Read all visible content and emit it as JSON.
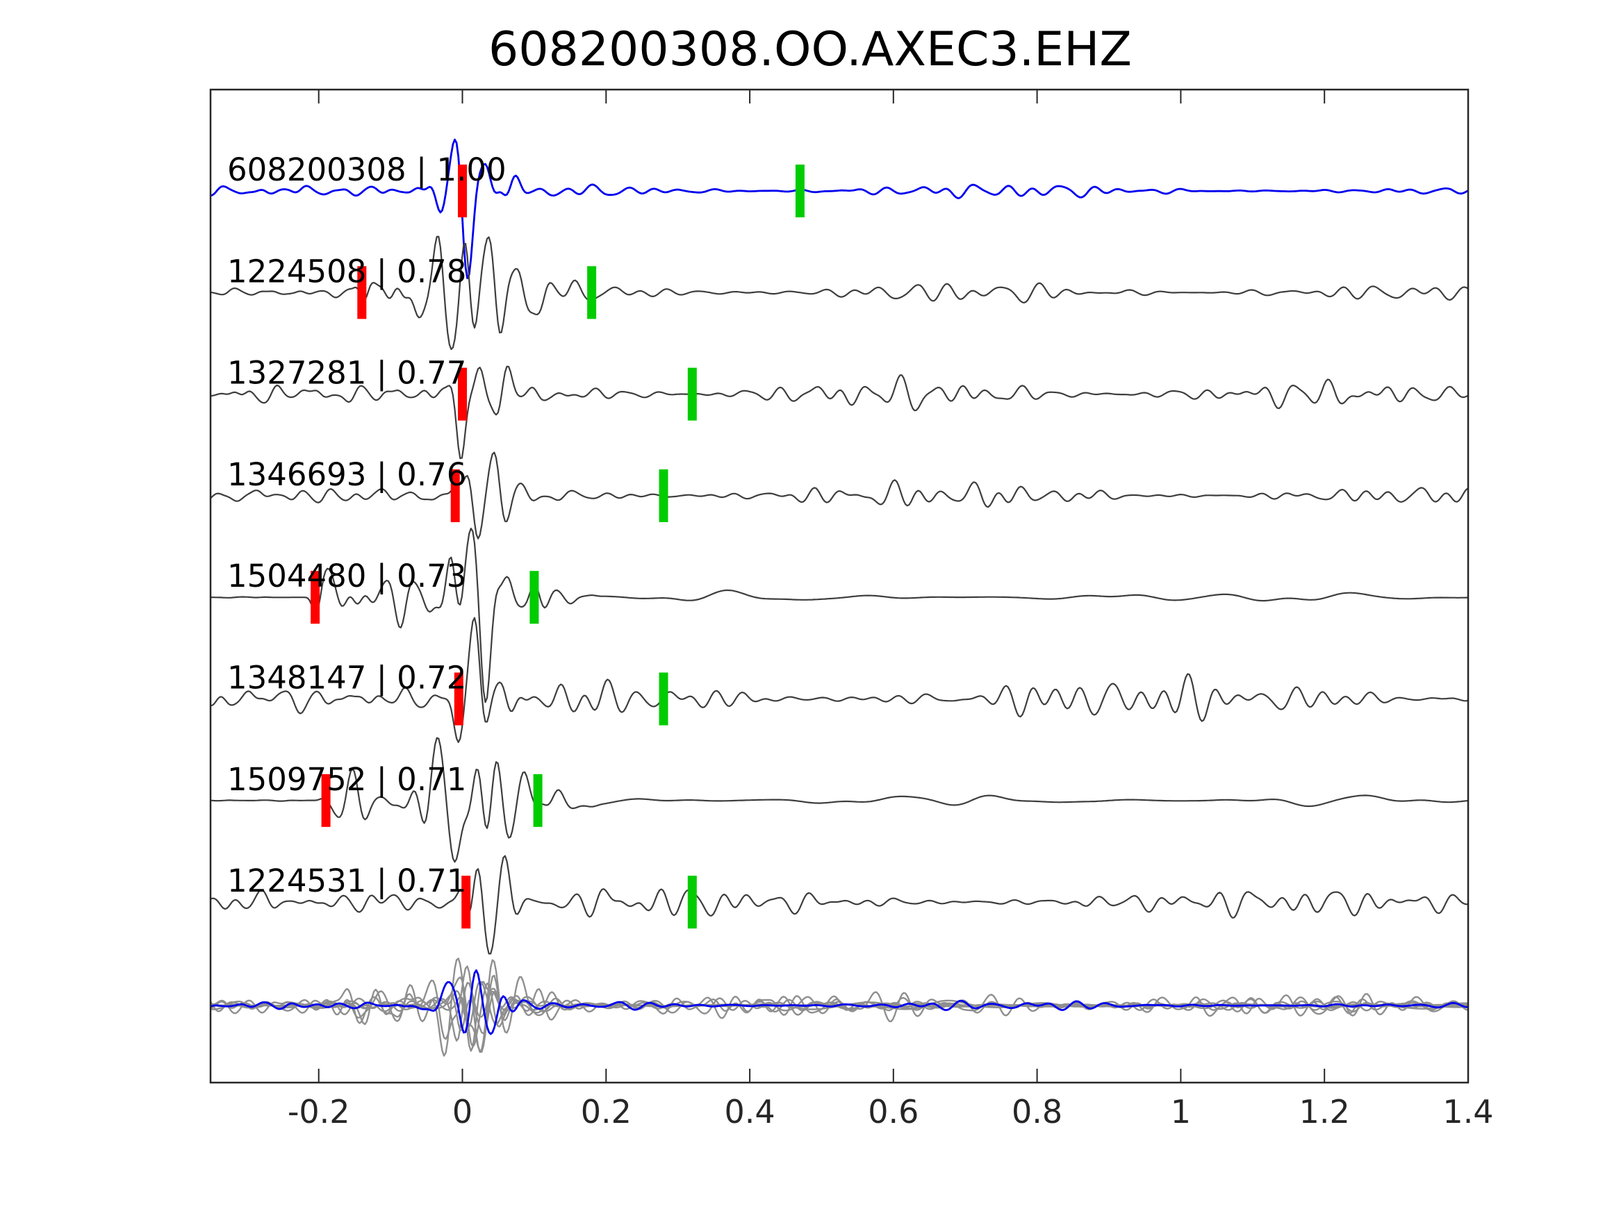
{
  "title": "608200308.OO.AXEC3.EHZ",
  "colors": {
    "template_trace": "#0000ee",
    "match_trace": "#3d3d3d",
    "overlay_gray": "#8f8f8f",
    "pick_red": "#ff0000",
    "pick_green": "#00cc00",
    "axis": "#262626",
    "text": "#000000"
  },
  "chart_data": {
    "type": "line",
    "title": "608200308.OO.AXEC3.EHZ",
    "subtitle": "",
    "xlabel": "",
    "ylabel": "",
    "grid": false,
    "legend": "none",
    "xlim": [
      -0.35,
      1.4
    ],
    "xtick_values": [
      -0.2,
      0,
      0.2,
      0.4,
      0.6,
      0.8,
      1,
      1.2,
      1.4
    ],
    "xtick_labels": [
      "-0.2",
      "0",
      "0.2",
      "0.4",
      "0.6",
      "0.8",
      "1",
      "1.2",
      "1.4"
    ],
    "description": "Template waveform (blue, top) compared with 7 matched detection waveforms (gray); red bars = trace-start/P pick, green bars = secondary pick; bottom row overlays all traces (gray) with the template (blue).",
    "traces": [
      {
        "id": "608200308",
        "correlation": "1.00",
        "label": "608200308 | 1.00",
        "kind": "template",
        "red_pick": 0.0,
        "green_pick": 0.47,
        "synth": {
          "pre": 6,
          "onset": -0.4,
          "med": 6,
          "burst": 88,
          "coda": 9,
          "seed": 11,
          "smooth_coda": false,
          "taper": 0.55
        }
      },
      {
        "id": "1224508",
        "correlation": "0.78",
        "label": "1224508 | 0.78",
        "kind": "match",
        "red_pick": -0.14,
        "green_pick": 0.18,
        "synth": {
          "pre": 5,
          "onset": -0.14,
          "med": 40,
          "burst": 80,
          "coda": 13,
          "seed": 22,
          "smooth_coda": false,
          "taper": 0.3
        }
      },
      {
        "id": "1327281",
        "correlation": "0.77",
        "label": "1327281 | 0.77",
        "kind": "match",
        "red_pick": 0.0,
        "green_pick": 0.32,
        "synth": {
          "pre": 11,
          "onset": -0.01,
          "med": 11,
          "burst": 78,
          "coda": 19,
          "seed": 33,
          "smooth_coda": false,
          "taper": 0.2
        }
      },
      {
        "id": "1346693",
        "correlation": "0.76",
        "label": "1346693 | 0.76",
        "kind": "match",
        "red_pick": -0.01,
        "green_pick": 0.28,
        "synth": {
          "pre": 9,
          "onset": -0.015,
          "med": 9,
          "burst": 76,
          "coda": 16,
          "seed": 44,
          "smooth_coda": false,
          "taper": 0.35
        }
      },
      {
        "id": "1504480",
        "correlation": "0.73",
        "label": "1504480 | 0.73",
        "kind": "match",
        "red_pick": -0.205,
        "green_pick": 0.1,
        "synth": {
          "pre": 0.6,
          "onset": -0.205,
          "med": 34,
          "burst": 82,
          "coda": 7,
          "seed": 55,
          "smooth_coda": true,
          "taper": 0.2
        }
      },
      {
        "id": "1348147",
        "correlation": "0.72",
        "label": "1348147 | 0.72",
        "kind": "match",
        "red_pick": -0.005,
        "green_pick": 0.28,
        "synth": {
          "pre": 14,
          "onset": -0.01,
          "med": 14,
          "burst": 78,
          "coda": 26,
          "seed": 66,
          "smooth_coda": false,
          "taper": 0.15
        }
      },
      {
        "id": "1509752",
        "correlation": "0.71",
        "label": "1509752 | 0.71",
        "kind": "match",
        "red_pick": -0.19,
        "green_pick": 0.105,
        "synth": {
          "pre": 0.6,
          "onset": -0.19,
          "med": 36,
          "burst": 85,
          "coda": 8,
          "seed": 77,
          "smooth_coda": true,
          "taper": 0.25
        }
      },
      {
        "id": "1224531",
        "correlation": "0.71",
        "label": "1224531 | 0.71",
        "kind": "match",
        "red_pick": 0.005,
        "green_pick": 0.32,
        "synth": {
          "pre": 12,
          "onset": 0.0,
          "med": 12,
          "burst": 82,
          "coda": 19,
          "seed": 88,
          "smooth_coda": false,
          "taper": 0.2
        }
      }
    ],
    "overlay_row": {
      "gray_trace_count": 7,
      "has_template_overlay": true,
      "gray_scale": 0.68,
      "template_scale": 0.66
    }
  }
}
